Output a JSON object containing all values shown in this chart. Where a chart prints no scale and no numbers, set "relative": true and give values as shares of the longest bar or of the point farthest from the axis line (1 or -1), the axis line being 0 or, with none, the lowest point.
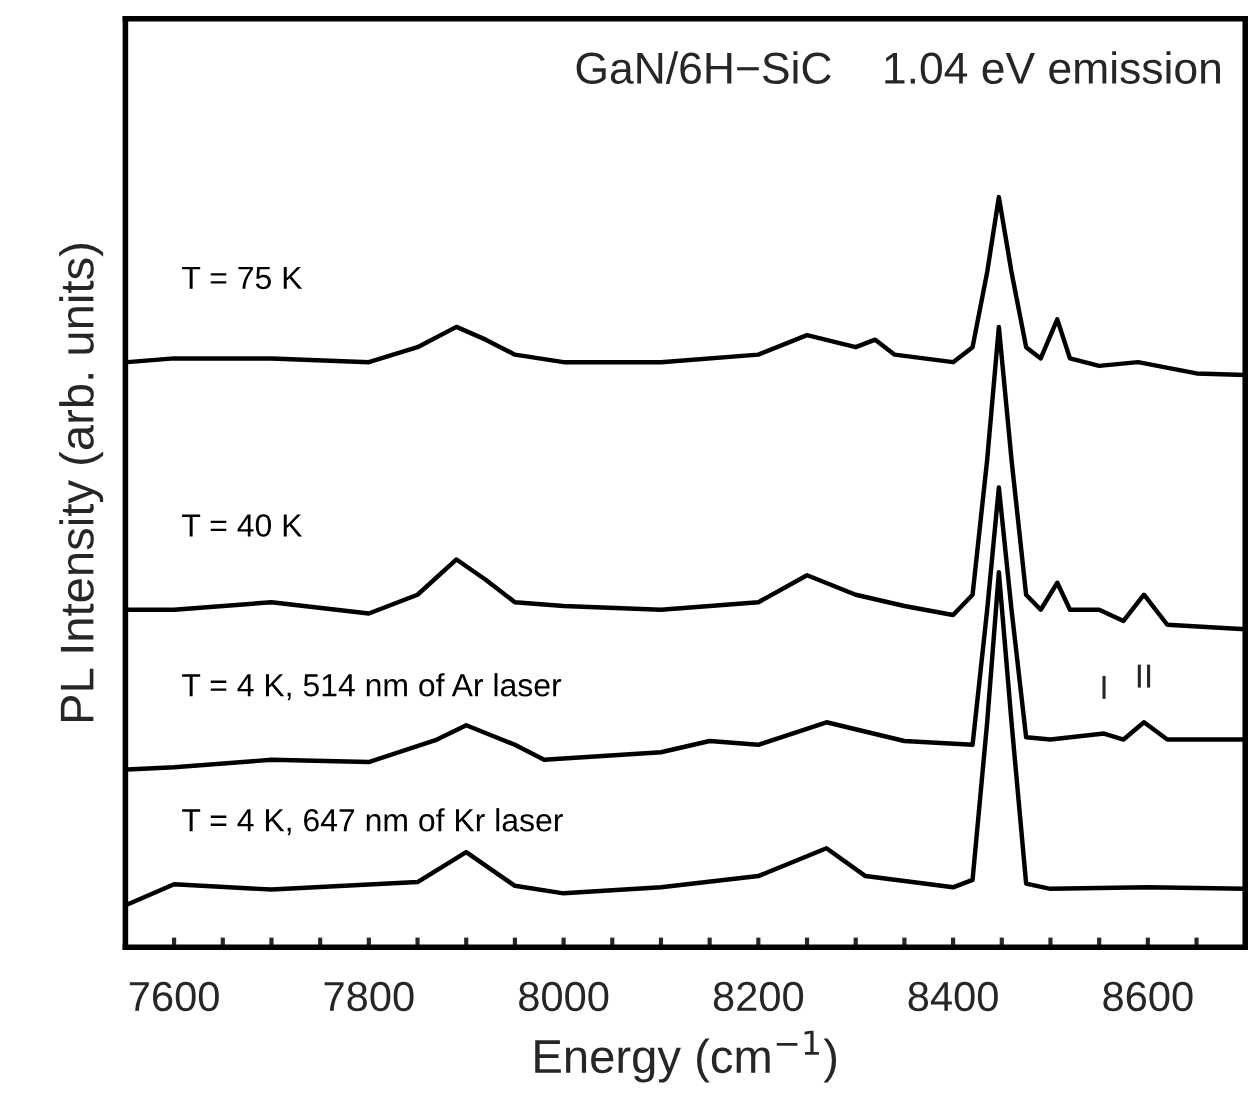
{
  "chart_data": {
    "type": "line",
    "title": "GaN/6H−SiC    1.04 eV emission",
    "xlabel": "Energy (cm$^{−1}$)",
    "ylabel": "PL Intensity (arb. units)",
    "relative": true,
    "tick_labels": "x",
    "grid": false,
    "legend": false,
    "xlim": [
      7550,
      8700
    ],
    "xticks": [
      {
        "value": 7550,
        "label": null
      },
      7600,
      {
        "value": 7650,
        "label": null
      },
      {
        "value": 7700,
        "label": null
      },
      {
        "value": 7750,
        "label": null
      },
      7800,
      {
        "value": 7850,
        "label": null
      },
      {
        "value": 7900,
        "label": null
      },
      {
        "value": 7950,
        "label": null
      },
      8000,
      {
        "value": 8050,
        "label": null
      },
      {
        "value": 8100,
        "label": null
      },
      {
        "value": 8150,
        "label": null
      },
      8200,
      {
        "value": 8250,
        "label": null
      },
      {
        "value": 8300,
        "label": null
      },
      {
        "value": 8350,
        "label": null
      },
      8400,
      {
        "value": 8450,
        "label": null
      },
      {
        "value": 8500,
        "label": null
      },
      {
        "value": 8550,
        "label": null
      },
      8600,
      {
        "value": 8650,
        "label": null
      }
    ],
    "series": [
      {
        "name": "T = 75 K",
        "color": "#000000",
        "x": [
          7552,
          7600,
          7700,
          7800,
          7850,
          7890,
          7920,
          7950,
          8000,
          8100,
          8200,
          8250,
          8300,
          8320,
          8340,
          8400,
          8420,
          8435,
          8447,
          8460,
          8475,
          8490,
          8507,
          8520,
          8550,
          8590,
          8650,
          8700
        ],
        "values": [
          0.78,
          0.785,
          0.785,
          0.78,
          0.8,
          0.827,
          0.81,
          0.79,
          0.78,
          0.78,
          0.79,
          0.816,
          0.8,
          0.81,
          0.79,
          0.78,
          0.8,
          0.9,
          1.0,
          0.9,
          0.8,
          0.785,
          0.837,
          0.785,
          0.775,
          0.78,
          0.765,
          0.763
        ]
      },
      {
        "name": "T = 40 K",
        "color": "#000000",
        "x": [
          7552,
          7600,
          7700,
          7800,
          7850,
          7890,
          7920,
          7950,
          8000,
          8100,
          8200,
          8250,
          8300,
          8350,
          8400,
          8420,
          8435,
          8447,
          8460,
          8475,
          8490,
          8507,
          8520,
          8550,
          8575,
          8596,
          8620,
          8700
        ],
        "values": [
          0.45,
          0.45,
          0.46,
          0.445,
          0.47,
          0.517,
          0.49,
          0.46,
          0.455,
          0.45,
          0.46,
          0.496,
          0.47,
          0.455,
          0.443,
          0.47,
          0.65,
          0.827,
          0.65,
          0.47,
          0.45,
          0.486,
          0.45,
          0.45,
          0.435,
          0.47,
          0.43,
          0.424
        ]
      },
      {
        "name": "T = 4 K, 514 nm of Ar laser",
        "color": "#000000",
        "x": [
          7552,
          7600,
          7700,
          7800,
          7870,
          7900,
          7950,
          7980,
          8100,
          8150,
          8200,
          8270,
          8350,
          8420,
          8435,
          8447,
          8460,
          8475,
          8500,
          8555,
          8575,
          8596,
          8620,
          8700
        ],
        "values": [
          0.237,
          0.24,
          0.25,
          0.247,
          0.277,
          0.296,
          0.27,
          0.25,
          0.26,
          0.275,
          0.27,
          0.3,
          0.275,
          0.27,
          0.45,
          0.613,
          0.45,
          0.28,
          0.277,
          0.285,
          0.277,
          0.3,
          0.277,
          0.277
        ]
      },
      {
        "name": "T = 4 K, 647 nm of Kr laser",
        "color": "#000000",
        "x": [
          7552,
          7600,
          7700,
          7850,
          7900,
          7950,
          8000,
          8100,
          8200,
          8270,
          8310,
          8400,
          8420,
          8435,
          8447,
          8460,
          8475,
          8500,
          8600,
          8700
        ],
        "values": [
          0.057,
          0.084,
          0.077,
          0.087,
          0.127,
          0.082,
          0.072,
          0.08,
          0.095,
          0.132,
          0.095,
          0.08,
          0.09,
          0.3,
          0.5,
          0.3,
          0.085,
          0.078,
          0.08,
          0.078
        ]
      }
    ],
    "annotations": [
      {
        "text": "I",
        "x": 8555,
        "y": 0.285
      },
      {
        "text": "II",
        "x": 8596,
        "y": 0.3
      }
    ]
  }
}
